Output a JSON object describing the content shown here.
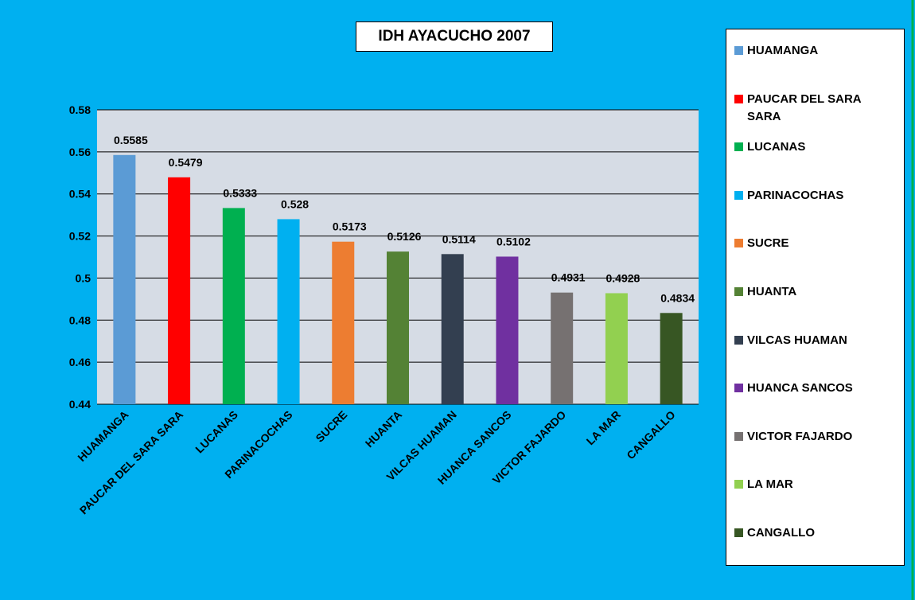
{
  "chart_data": {
    "type": "bar",
    "title": "IDH  AYACUCHO 2007",
    "categories": [
      "HUAMANGA",
      "PAUCAR DEL SARA SARA",
      "LUCANAS",
      "PARINACOCHAS",
      "SUCRE",
      "HUANTA",
      "VILCAS HUAMAN",
      "HUANCA SANCOS",
      "VICTOR FAJARDO",
      "LA MAR",
      "CANGALLO"
    ],
    "values": [
      0.5585,
      0.5479,
      0.5333,
      0.528,
      0.5173,
      0.5126,
      0.5114,
      0.5102,
      0.4931,
      0.4928,
      0.4834
    ],
    "colors": [
      "#5b9bd5",
      "#ff0000",
      "#00b050",
      "#00b0f0",
      "#ed7d31",
      "#548235",
      "#333f50",
      "#7030a0",
      "#767171",
      "#92d050",
      "#375623"
    ],
    "ylim": [
      0.44,
      0.58
    ],
    "yticks": [
      0.44,
      0.46,
      0.48,
      0.5,
      0.52,
      0.54,
      0.56,
      0.58
    ],
    "grid": true,
    "legend": "right"
  }
}
